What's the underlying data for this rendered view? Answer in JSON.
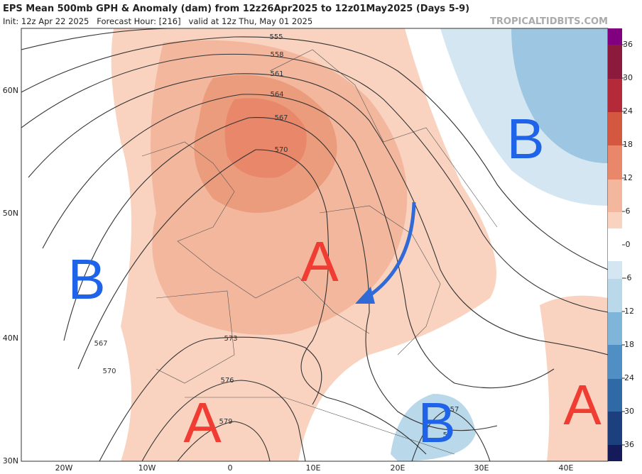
{
  "header": {
    "title": "EPS Mean 500mb GPH & Anomaly (dam) from 12z26Apr2025 to 12z01May2025 (Days 5-9)",
    "subtitle": "Init: 12z Apr 22 2025   Forecast Hour: [216]   valid at 12z Thu, May 01 2025",
    "watermark": "TROPICALTIDBITS.COM"
  },
  "map": {
    "latitude_labels": [
      "60N",
      "50N",
      "40N",
      "30N"
    ],
    "longitude_labels": [
      "20W",
      "10W",
      "0",
      "10E",
      "20E",
      "30E",
      "40E"
    ],
    "contour_labels": [
      "555",
      "558",
      "561",
      "564",
      "567",
      "570",
      "573",
      "576",
      "579",
      "567",
      "570",
      "57",
      "57"
    ],
    "centers": [
      "B",
      "B",
      "A",
      "A",
      "A",
      "B"
    ]
  },
  "colorbar": {
    "labels": [
      36,
      30,
      24,
      18,
      12,
      6,
      0,
      -6,
      -12,
      -18,
      -24,
      -30,
      -36
    ]
  }
}
